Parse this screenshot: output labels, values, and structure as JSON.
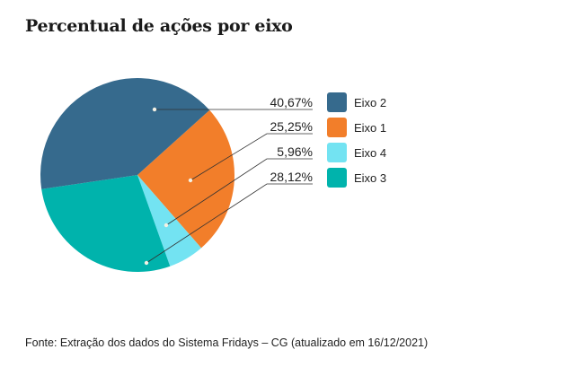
{
  "chart_data": {
    "type": "pie",
    "title": "Percentual de ações por eixo",
    "slices": [
      {
        "name": "Eixo 2",
        "value": 40.67,
        "label": "40,67%",
        "color": "#366a8d"
      },
      {
        "name": "Eixo 1",
        "value": 25.25,
        "label": "25,25%",
        "color": "#f27e2a"
      },
      {
        "name": "Eixo 4",
        "value": 5.96,
        "label": "5,96%",
        "color": "#73e3f2"
      },
      {
        "name": "Eixo 3",
        "value": 28.12,
        "label": "28,12%",
        "color": "#00b3ac"
      }
    ],
    "legend": "right",
    "source": "Fonte: Extração dos dados do Sistema Fridays – CG (atualizado em 16/12/2021)"
  }
}
